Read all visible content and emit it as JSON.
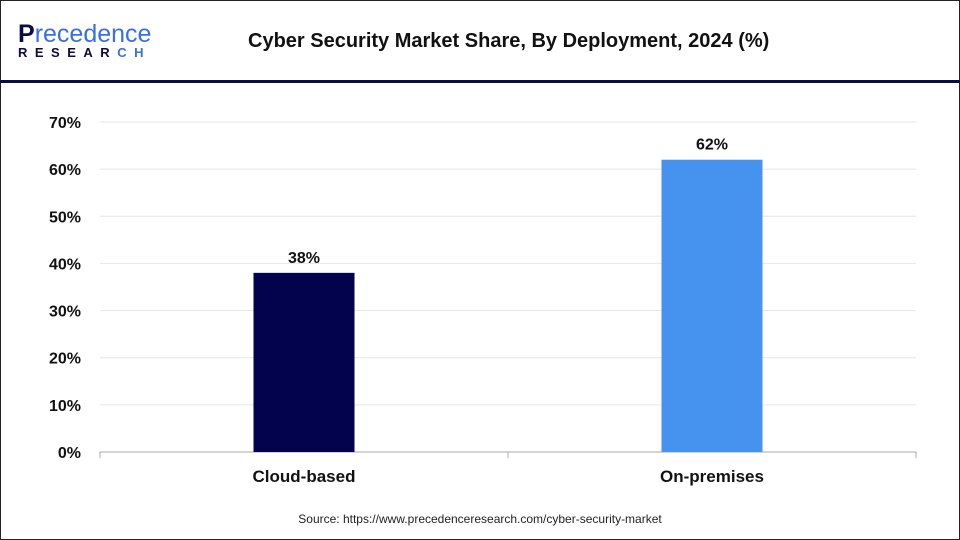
{
  "logo": {
    "line1": "Precedence",
    "line2": "RESEARCH"
  },
  "chart_data": {
    "type": "bar",
    "title": "Cyber Security Market Share, By Deployment, 2024 (%)",
    "categories": [
      "Cloud-based",
      "On-premises"
    ],
    "values": [
      38,
      62
    ],
    "data_labels": [
      "38%",
      "62%"
    ],
    "colors": [
      "#03034d",
      "#4592ef"
    ],
    "ylim": [
      0,
      70
    ],
    "yticks": [
      "0%",
      "10%",
      "20%",
      "30%",
      "40%",
      "50%",
      "60%",
      "70%"
    ],
    "grid": true,
    "xlabel": "",
    "ylabel": ""
  },
  "source": "Source: https://www.precedenceresearch.com/cyber-security-market"
}
